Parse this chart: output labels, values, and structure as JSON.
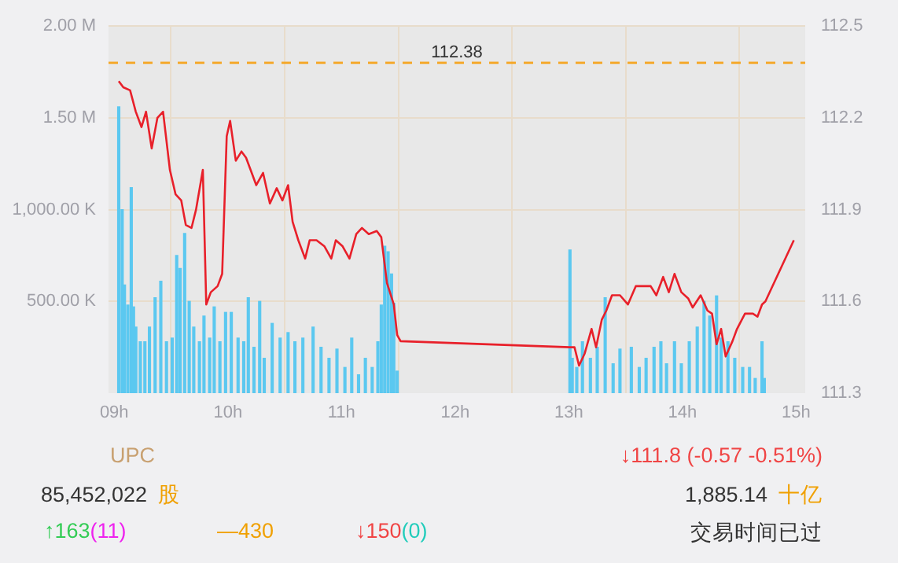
{
  "chart_data": {
    "type": "bar",
    "xlim": [
      8.95,
      15.08
    ],
    "xticks": [
      {
        "value": 9,
        "label": "09h"
      },
      {
        "value": 10,
        "label": "10h"
      },
      {
        "value": 11,
        "label": "11h"
      },
      {
        "value": 12,
        "label": "12h"
      },
      {
        "value": 13,
        "label": "13h"
      },
      {
        "value": 14,
        "label": "14h"
      },
      {
        "value": 15,
        "label": "15h"
      }
    ],
    "ylim": [
      0,
      2000000
    ],
    "yticks": [
      {
        "value": 500000,
        "label": "500.00 K"
      },
      {
        "value": 1000000,
        "label": "1,000.00 K"
      },
      {
        "value": 1500000,
        "label": "1.50 M"
      },
      {
        "value": 2000000,
        "label": "2.00 M"
      }
    ],
    "y2lim": [
      111.3,
      112.5
    ],
    "y2ticks": [
      111.3,
      111.6,
      111.9,
      112.2,
      112.5
    ],
    "grid": true,
    "legend": false,
    "series": [
      {
        "color": "#5bc8f0",
        "x": [
          9.04,
          9.07,
          9.09,
          9.12,
          9.15,
          9.17,
          9.19,
          9.23,
          9.27,
          9.31,
          9.36,
          9.41,
          9.46,
          9.51,
          9.55,
          9.58,
          9.62,
          9.66,
          9.7,
          9.75,
          9.79,
          9.84,
          9.88,
          9.93,
          9.98,
          10.03,
          10.09,
          10.14,
          10.18,
          10.23,
          10.28,
          10.32,
          10.39,
          10.46,
          10.53,
          10.59,
          10.66,
          10.75,
          10.82,
          10.89,
          10.96,
          11.03,
          11.09,
          11.15,
          11.21,
          11.27,
          11.32,
          11.35,
          11.38,
          11.41,
          11.44,
          11.46,
          11.49,
          13.01,
          13.03,
          13.07,
          13.12,
          13.19,
          13.25,
          13.32,
          13.39,
          13.45,
          13.55,
          13.62,
          13.68,
          13.75,
          13.81,
          13.86,
          13.93,
          13.99,
          14.06,
          14.13,
          14.19,
          14.24,
          14.3,
          14.34,
          14.4,
          14.46,
          14.53,
          14.59,
          14.64,
          14.7,
          14.72
        ],
        "values": [
          1560000,
          1000000,
          590000,
          480000,
          1120000,
          470000,
          360000,
          280000,
          280000,
          360000,
          520000,
          610000,
          280000,
          300000,
          750000,
          680000,
          870000,
          500000,
          360000,
          280000,
          420000,
          300000,
          470000,
          280000,
          440000,
          440000,
          300000,
          280000,
          520000,
          250000,
          500000,
          190000,
          380000,
          300000,
          330000,
          280000,
          300000,
          360000,
          250000,
          190000,
          240000,
          140000,
          300000,
          100000,
          190000,
          140000,
          280000,
          480000,
          800000,
          770000,
          650000,
          490000,
          120000,
          780000,
          190000,
          140000,
          280000,
          190000,
          250000,
          520000,
          160000,
          240000,
          250000,
          140000,
          190000,
          250000,
          280000,
          160000,
          280000,
          160000,
          280000,
          360000,
          500000,
          420000,
          530000,
          300000,
          280000,
          190000,
          140000,
          140000,
          80000,
          280000,
          80000
        ]
      },
      {
        "type": "line",
        "axis": "y2",
        "color": "#e8202a",
        "marker": "none",
        "x": [
          9.04,
          9.08,
          9.14,
          9.19,
          9.24,
          9.28,
          9.33,
          9.38,
          9.43,
          9.49,
          9.54,
          9.59,
          9.63,
          9.68,
          9.72,
          9.78,
          9.81,
          9.85,
          9.91,
          9.95,
          9.99,
          10.02,
          10.07,
          10.12,
          10.16,
          10.2,
          10.25,
          10.31,
          10.37,
          10.43,
          10.48,
          10.53,
          10.57,
          10.62,
          10.68,
          10.72,
          10.78,
          10.85,
          10.91,
          10.95,
          11.01,
          11.07,
          11.13,
          11.18,
          11.24,
          11.31,
          11.35,
          11.4,
          11.46,
          11.49,
          11.52,
          13.01,
          13.05,
          13.09,
          13.14,
          13.2,
          13.24,
          13.29,
          13.33,
          13.38,
          13.45,
          13.52,
          13.59,
          13.66,
          13.72,
          13.77,
          13.83,
          13.88,
          13.93,
          13.99,
          14.05,
          14.09,
          14.16,
          14.22,
          14.26,
          14.3,
          14.34,
          14.38,
          14.44,
          14.48,
          14.55,
          14.62,
          14.66,
          14.7,
          14.73,
          14.98
        ],
        "values": [
          112.32,
          112.3,
          112.29,
          112.22,
          112.17,
          112.22,
          112.1,
          112.2,
          112.22,
          112.03,
          111.95,
          111.93,
          111.85,
          111.84,
          111.9,
          112.03,
          111.59,
          111.63,
          111.65,
          111.69,
          112.14,
          112.19,
          112.06,
          112.09,
          112.07,
          112.03,
          111.98,
          112.02,
          111.92,
          111.97,
          111.93,
          111.98,
          111.86,
          111.8,
          111.74,
          111.8,
          111.8,
          111.78,
          111.74,
          111.8,
          111.78,
          111.74,
          111.82,
          111.84,
          111.82,
          111.83,
          111.81,
          111.66,
          111.59,
          111.49,
          111.47,
          111.45,
          111.45,
          111.39,
          111.43,
          111.51,
          111.45,
          111.54,
          111.57,
          111.62,
          111.62,
          111.59,
          111.65,
          111.65,
          111.65,
          111.62,
          111.68,
          111.63,
          111.69,
          111.63,
          111.61,
          111.58,
          111.62,
          111.57,
          111.56,
          111.46,
          111.51,
          111.42,
          111.47,
          111.51,
          111.56,
          111.56,
          111.55,
          111.59,
          111.6,
          111.8
        ]
      }
    ],
    "ref_lines": [
      {
        "axis": "y2",
        "value": 112.38,
        "label": "112.38",
        "color": "#f5a623",
        "line_style": "dashed"
      }
    ],
    "annotations": [
      "UPC",
      "↓111.8  (-0.57  -0.51%)",
      "85,452,022",
      "股",
      "1,885.14",
      "十亿",
      "↑163",
      "(11)",
      "—430",
      "↓150",
      "(0)",
      "交易时间已过"
    ]
  }
}
